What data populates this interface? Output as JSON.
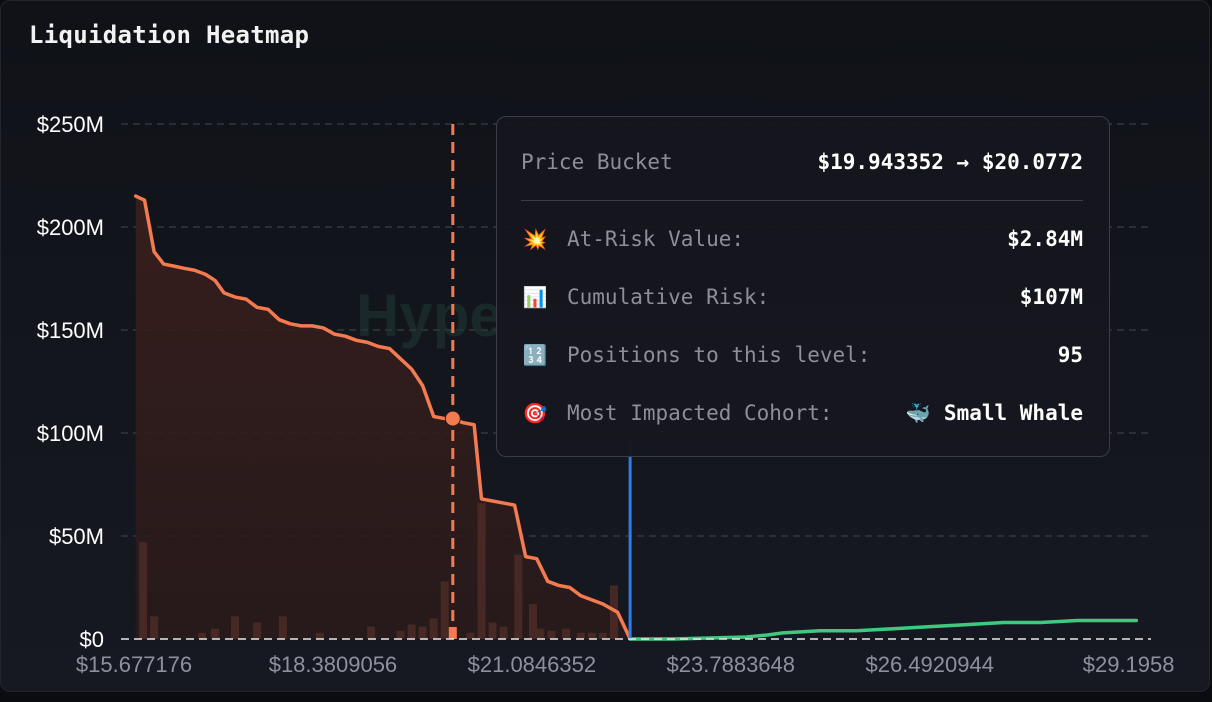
{
  "title": "Liquidation Heatmap",
  "watermark": "Hype",
  "tooltip": {
    "price_bucket_label": "Price Bucket",
    "price_bucket_value": "$19.943352 → $20.0772",
    "rows": [
      {
        "icon": "explosion-icon",
        "glyph": "💥",
        "label": "At-Risk Value:",
        "value": "$2.84M"
      },
      {
        "icon": "bar-chart-icon",
        "glyph": "📊",
        "label": "Cumulative Risk:",
        "value": "$107M"
      },
      {
        "icon": "numbers-icon",
        "glyph": "🔢",
        "label": "Positions to this level:",
        "value": "95"
      },
      {
        "icon": "target-icon",
        "glyph": "🎯",
        "label": "Most Impacted Cohort:",
        "value": "Small Whale",
        "value_icon": "whale-icon",
        "value_glyph": "🐳"
      }
    ]
  },
  "colors": {
    "long_line": "#f47a50",
    "short_line": "#3fc980",
    "current_price": "#2f7bea",
    "cursor": "#f47a50"
  },
  "chart_data": {
    "type": "line",
    "title": "Liquidation Heatmap",
    "xlabel": "",
    "ylabel": "",
    "xlim": [
      15.5,
      29.5
    ],
    "ylim": [
      0,
      250
    ],
    "y_unit": "$M",
    "x_ticks": [
      "$15.677176",
      "$18.3809056",
      "$21.0846352",
      "$23.7883648",
      "$26.4920944",
      "$29.1958"
    ],
    "x_tick_values": [
      15.677176,
      18.3809056,
      21.0846352,
      23.7883648,
      26.4920944,
      29.1958
    ],
    "y_ticks": [
      "$0",
      "$50M",
      "$100M",
      "$150M",
      "$200M",
      "$250M"
    ],
    "y_tick_values": [
      0,
      50,
      100,
      150,
      200,
      250
    ],
    "grid": true,
    "current_price": 22.42,
    "cursor_price": 20.01,
    "series": [
      {
        "values_x": [
          15.7,
          15.82,
          15.95,
          16.08,
          16.22,
          16.35,
          16.5,
          16.65,
          16.78,
          16.9,
          17.05,
          17.2,
          17.35,
          17.5,
          17.65,
          17.8,
          17.95,
          18.1,
          18.25,
          18.4,
          18.55,
          18.7,
          18.85,
          19.0,
          19.15,
          19.3,
          19.45,
          19.6,
          19.75,
          19.9,
          20.01,
          20.15,
          20.3,
          20.4,
          20.55,
          20.7,
          20.85,
          21.0,
          21.15,
          21.3,
          21.45,
          21.6,
          21.75,
          21.9,
          22.05,
          22.15,
          22.25,
          22.42
        ],
        "values_y": [
          215,
          213,
          188,
          182,
          181,
          180,
          179,
          177,
          174,
          168,
          166,
          165,
          161,
          160,
          155,
          153,
          152,
          152,
          151,
          148,
          147,
          145,
          144,
          142,
          141,
          136,
          131,
          123,
          108,
          107,
          107,
          105,
          104,
          68,
          67,
          66,
          65,
          40,
          39,
          28,
          26,
          25,
          21,
          19,
          17,
          15,
          13,
          0
        ]
      },
      {
        "values_x": [
          22.42,
          23.0,
          23.5,
          24.0,
          24.3,
          24.5,
          25.0,
          25.5,
          26.0,
          26.5,
          27.0,
          27.5,
          28.0,
          28.5,
          29.0,
          29.3
        ],
        "values_y": [
          0,
          0,
          0.5,
          1,
          2,
          3,
          4,
          4,
          5,
          6,
          7,
          8,
          8,
          9,
          9,
          9
        ]
      }
    ],
    "bars_x": [
      15.8,
      15.95,
      16.6,
      16.78,
      17.05,
      17.35,
      17.7,
      18.2,
      18.9,
      19.3,
      19.45,
      19.6,
      19.75,
      19.9,
      20.01,
      20.25,
      20.4,
      20.55,
      20.7,
      20.9,
      21.1,
      21.2,
      21.35,
      21.55,
      21.75,
      21.9,
      22.05,
      22.2
    ],
    "bars_y": [
      47,
      11,
      3,
      5,
      11,
      8,
      11,
      3,
      6,
      4,
      7,
      6,
      10,
      28,
      3,
      3,
      66,
      8,
      6,
      41,
      17,
      5,
      4,
      5,
      3,
      3,
      3,
      26
    ]
  }
}
